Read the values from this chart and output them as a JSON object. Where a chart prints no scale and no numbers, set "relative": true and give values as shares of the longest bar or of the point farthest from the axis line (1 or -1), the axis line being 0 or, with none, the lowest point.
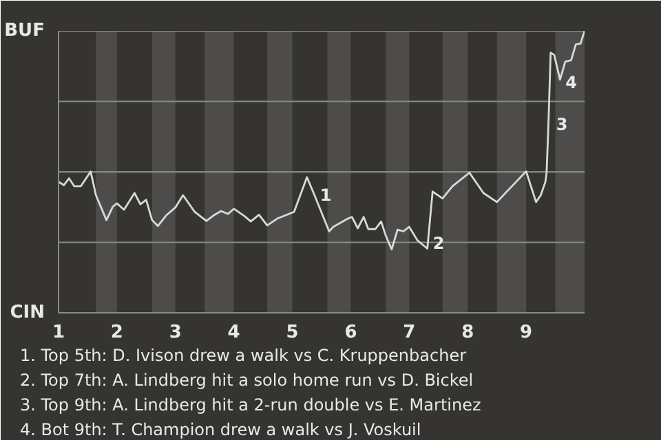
{
  "chart_data": {
    "type": "line",
    "relative": true,
    "x": [
      1.0,
      1.09,
      1.18,
      1.27,
      1.38,
      1.55,
      1.64,
      1.82,
      1.93,
      2.0,
      2.12,
      2.3,
      2.4,
      2.5,
      2.6,
      2.7,
      2.84,
      3.0,
      3.13,
      3.33,
      3.53,
      3.65,
      3.78,
      3.9,
      4.0,
      4.17,
      4.29,
      4.43,
      4.57,
      4.74,
      4.91,
      5.03,
      5.25,
      5.38,
      5.63,
      5.7,
      5.95,
      6.02,
      6.12,
      6.22,
      6.3,
      6.42,
      6.52,
      6.6,
      6.7,
      6.8,
      6.9,
      7.0,
      7.14,
      7.31,
      7.4,
      7.57,
      7.74,
      8.03,
      8.27,
      8.5,
      8.83,
      9.0,
      9.17,
      9.25,
      9.33,
      9.35,
      9.38,
      9.42,
      9.48,
      9.58,
      9.67,
      9.77,
      9.85,
      9.93,
      10.0
    ],
    "series": [
      {
        "color": "#d8d8d8",
        "values": [
          0.465,
          0.453,
          0.477,
          0.449,
          0.449,
          0.501,
          0.417,
          0.329,
          0.377,
          0.388,
          0.366,
          0.425,
          0.385,
          0.401,
          0.329,
          0.308,
          0.345,
          0.374,
          0.417,
          0.358,
          0.326,
          0.345,
          0.361,
          0.351,
          0.369,
          0.345,
          0.324,
          0.348,
          0.31,
          0.334,
          0.348,
          0.358,
          0.481,
          0.417,
          0.289,
          0.305,
          0.334,
          0.34,
          0.3,
          0.34,
          0.297,
          0.297,
          0.324,
          0.273,
          0.225,
          0.295,
          0.289,
          0.305,
          0.257,
          0.228,
          0.43,
          0.406,
          0.449,
          0.497,
          0.425,
          0.393,
          0.465,
          0.502,
          0.393,
          0.417,
          0.465,
          0.497,
          0.658,
          0.923,
          0.915,
          0.827,
          0.891,
          0.896,
          0.952,
          0.955,
          1.0
        ]
      }
    ],
    "xlim": [
      1,
      10
    ],
    "xticks": [
      1,
      2,
      3,
      4,
      5,
      6,
      7,
      8,
      9
    ],
    "ref_lines": [
      {
        "axis": "y",
        "value": 0.25,
        "label": null,
        "color": "#8a8a88"
      },
      {
        "axis": "y",
        "value": 0.5,
        "label": null,
        "color": "#8a8a88"
      },
      {
        "axis": "y",
        "value": 0.75,
        "label": null,
        "color": "#8a8a88"
      },
      {
        "axis": "y",
        "value": 1.0,
        "label": null,
        "color": "#8a8a88"
      }
    ],
    "bands": [
      {
        "axis": "x",
        "from": 1.64,
        "to": 2,
        "label": null,
        "color": "#4d4c4a"
      },
      {
        "axis": "x",
        "from": 2.6,
        "to": 3,
        "label": null,
        "color": "#4d4c4a"
      },
      {
        "axis": "x",
        "from": 3.5,
        "to": 4,
        "label": null,
        "color": "#4d4c4a"
      },
      {
        "axis": "x",
        "from": 4.57,
        "to": 5,
        "label": null,
        "color": "#4d4c4a"
      },
      {
        "axis": "x",
        "from": 5.6,
        "to": 6,
        "label": null,
        "color": "#4d4c4a"
      },
      {
        "axis": "x",
        "from": 6.6,
        "to": 7,
        "label": null,
        "color": "#4d4c4a"
      },
      {
        "axis": "x",
        "from": 7.57,
        "to": 8,
        "label": null,
        "color": "#4d4c4a"
      },
      {
        "axis": "x",
        "from": 8.5,
        "to": 9,
        "label": null,
        "color": "#4d4c4a"
      },
      {
        "axis": "x",
        "from": 9.5,
        "to": 10,
        "label": null,
        "color": "#4d4c4a"
      }
    ],
    "annotations": [
      "BUF",
      "CIN",
      {
        "text": "1",
        "x": 5.38,
        "y": 0.42
      },
      {
        "text": "2",
        "x": 7.31,
        "y": 0.25
      },
      {
        "text": "3",
        "x": 9.42,
        "y": 0.67
      },
      {
        "text": "4",
        "x": 9.58,
        "y": 0.82
      },
      "1. Top 5th: D. Ivison drew a walk vs C. Kruppenbacher",
      "2. Top 7th: A. Lindberg hit a solo home run vs D. Bickel",
      "3. Top 9th: A. Lindberg hit a 2-run double vs E. Martinez",
      "4. Bot 9th: T. Champion drew a walk vs J. Voskuil"
    ]
  }
}
